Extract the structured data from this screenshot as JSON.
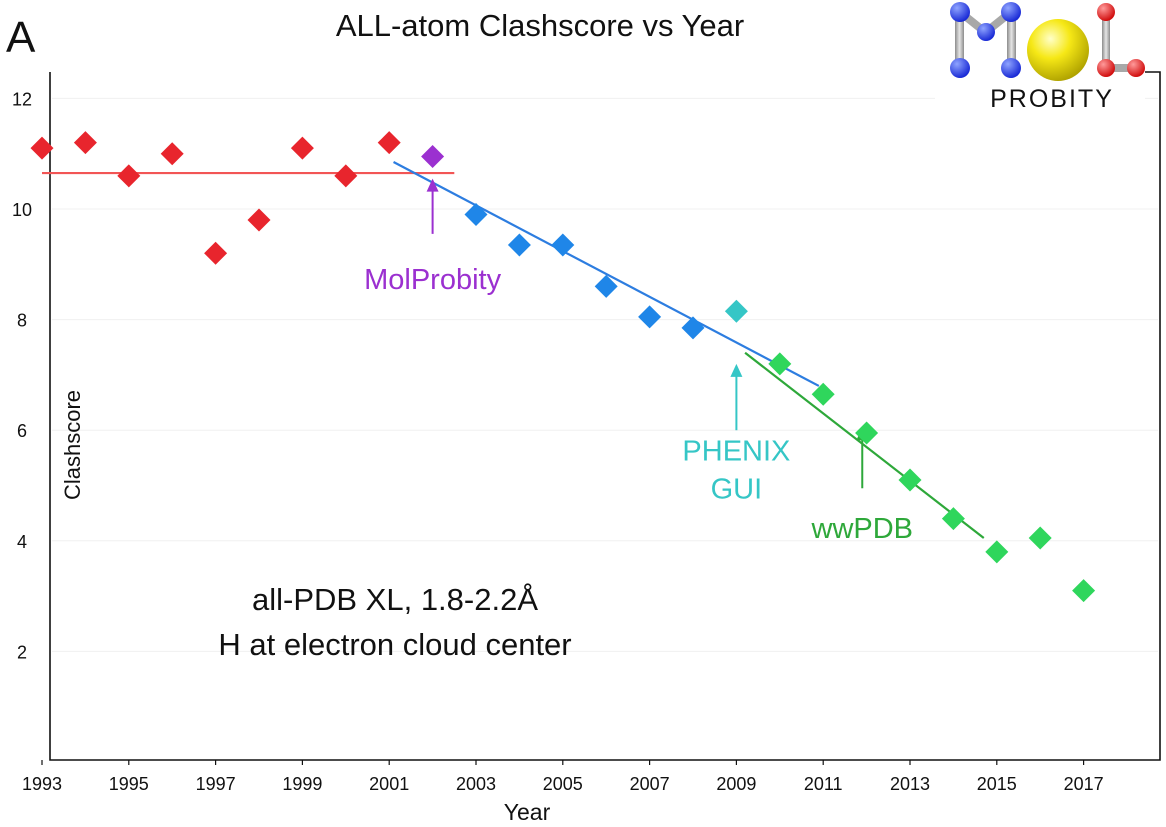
{
  "panel_label": "A",
  "logo": {
    "text_main": "MOL",
    "text_sub": "PROBITY"
  },
  "chart_data": {
    "type": "scatter",
    "title": "ALL-atom Clashscore vs Year",
    "xlabel": "Year",
    "ylabel": "Clashscore",
    "xlim": [
      1993,
      2018
    ],
    "ylim": [
      0,
      12
    ],
    "x_ticks": [
      1993,
      1995,
      1997,
      1999,
      2001,
      2003,
      2005,
      2007,
      2009,
      2011,
      2013,
      2015,
      2017
    ],
    "y_ticks": [
      2,
      4,
      6,
      8,
      10,
      12
    ],
    "grid": true,
    "legend": "none",
    "series": [
      {
        "color": "#e8252d",
        "marker": "diamond",
        "points": [
          {
            "x": 1993,
            "y": 11.1
          },
          {
            "x": 1994,
            "y": 11.2
          },
          {
            "x": 1995,
            "y": 10.6
          },
          {
            "x": 1996,
            "y": 11.0
          },
          {
            "x": 1997,
            "y": 9.2
          },
          {
            "x": 1998,
            "y": 9.8
          },
          {
            "x": 1999,
            "y": 11.1
          },
          {
            "x": 2000,
            "y": 10.6
          },
          {
            "x": 2001,
            "y": 11.2
          }
        ]
      },
      {
        "color": "#9b30d0",
        "marker": "diamond",
        "points": [
          {
            "x": 2002,
            "y": 10.95
          }
        ]
      },
      {
        "color": "#1f86e8",
        "marker": "diamond",
        "points": [
          {
            "x": 2003,
            "y": 9.9
          },
          {
            "x": 2004,
            "y": 9.35
          },
          {
            "x": 2005,
            "y": 9.35
          },
          {
            "x": 2006,
            "y": 8.6
          },
          {
            "x": 2007,
            "y": 8.05
          },
          {
            "x": 2008,
            "y": 7.85
          }
        ]
      },
      {
        "color": "#35c6c6",
        "marker": "diamond",
        "points": [
          {
            "x": 2009,
            "y": 8.15
          }
        ]
      },
      {
        "color": "#2fd65c",
        "marker": "diamond",
        "points": [
          {
            "x": 2010,
            "y": 7.2
          },
          {
            "x": 2011,
            "y": 6.65
          },
          {
            "x": 2012,
            "y": 5.95
          },
          {
            "x": 2013,
            "y": 5.1
          },
          {
            "x": 2014,
            "y": 4.4
          },
          {
            "x": 2015,
            "y": 3.8
          },
          {
            "x": 2016,
            "y": 4.05
          },
          {
            "x": 2017,
            "y": 3.1
          }
        ]
      }
    ],
    "trend_lines": [
      {
        "color": "#f25555",
        "x1": 1993,
        "y1": 10.65,
        "x2": 2002.5,
        "y2": 10.65
      },
      {
        "color": "#2d7de0",
        "x1": 2001.1,
        "y1": 10.85,
        "x2": 2010.9,
        "y2": 6.8
      },
      {
        "color": "#2ea83a",
        "x1": 2009.2,
        "y1": 7.4,
        "x2": 2014.7,
        "y2": 4.05
      }
    ],
    "annotations": [
      {
        "lines": [
          "MolProbity"
        ],
        "color": "#9b30d0",
        "arrow_x": 2002,
        "arrow_from_y": 9.55,
        "arrow_to_y": 10.55,
        "text_x": 2002,
        "text_y": 8.55
      },
      {
        "lines": [
          "PHENIX",
          "GUI"
        ],
        "color": "#35c6c6",
        "arrow_x": 2009,
        "arrow_from_y": 6.0,
        "arrow_to_y": 7.2,
        "text_x": 2009,
        "text_y": 5.45
      },
      {
        "lines": [
          "wwPDB"
        ],
        "color": "#2ea83a",
        "arrow_x": 2011.9,
        "arrow_from_y": 4.95,
        "arrow_to_y": 6.05,
        "text_x": 2011.9,
        "text_y": 4.05
      }
    ],
    "note": {
      "lines": [
        "all-PDB XL, 1.8-2.2Å",
        "H at electron cloud center"
      ]
    }
  }
}
